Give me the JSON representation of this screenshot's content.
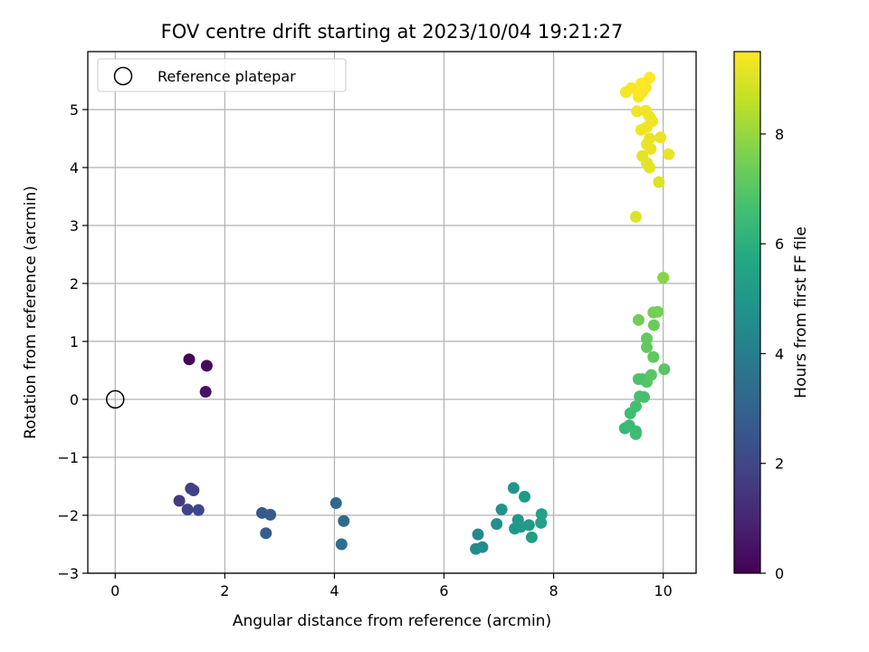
{
  "chart_data": {
    "type": "scatter",
    "title": "FOV centre drift starting at 2023/10/04 19:21:27",
    "xlabel": "Angular distance from reference (arcmin)",
    "ylabel": "Rotation from reference (arcmin)",
    "xlim": [
      -0.5,
      10.6
    ],
    "ylim": [
      -3,
      6
    ],
    "x_ticks": [
      0,
      2,
      4,
      6,
      8,
      10
    ],
    "y_ticks": [
      -3,
      -2,
      -1,
      0,
      1,
      2,
      3,
      4,
      5
    ],
    "x_tick_labels": [
      "0",
      "2",
      "4",
      "6",
      "8",
      "10"
    ],
    "y_tick_labels": [
      "−3",
      "−2",
      "−1",
      "0",
      "1",
      "2",
      "3",
      "4",
      "5"
    ],
    "grid": true,
    "legend": {
      "position": "top-left",
      "label": "Reference platepar"
    },
    "reference_point": {
      "x": 0,
      "y": 0
    },
    "colorbar": {
      "label": "Hours from first FF file",
      "colormap": "viridis",
      "range": [
        0,
        9.5
      ],
      "ticks": [
        0,
        2,
        4,
        6,
        8
      ],
      "tick_labels": [
        "0",
        "2",
        "4",
        "6",
        "8"
      ]
    },
    "points": [
      {
        "x": 1.35,
        "y": 0.69,
        "c": 0.1
      },
      {
        "x": 1.67,
        "y": 0.58,
        "c": 0.3
      },
      {
        "x": 1.65,
        "y": 0.13,
        "c": 0.5
      },
      {
        "x": 1.17,
        "y": -1.75,
        "c": 1.6
      },
      {
        "x": 1.38,
        "y": -1.54,
        "c": 1.7
      },
      {
        "x": 1.43,
        "y": -1.57,
        "c": 1.8
      },
      {
        "x": 1.32,
        "y": -1.9,
        "c": 1.9
      },
      {
        "x": 1.52,
        "y": -1.91,
        "c": 2.0
      },
      {
        "x": 2.68,
        "y": -1.96,
        "c": 2.6
      },
      {
        "x": 2.83,
        "y": -1.99,
        "c": 2.7
      },
      {
        "x": 2.75,
        "y": -2.31,
        "c": 2.8
      },
      {
        "x": 4.03,
        "y": -1.79,
        "c": 3.2
      },
      {
        "x": 4.17,
        "y": -2.1,
        "c": 3.3
      },
      {
        "x": 4.13,
        "y": -2.5,
        "c": 3.4
      },
      {
        "x": 6.62,
        "y": -2.33,
        "c": 4.4
      },
      {
        "x": 6.58,
        "y": -2.58,
        "c": 4.5
      },
      {
        "x": 6.7,
        "y": -2.55,
        "c": 4.6
      },
      {
        "x": 6.96,
        "y": -2.15,
        "c": 4.7
      },
      {
        "x": 7.05,
        "y": -1.9,
        "c": 4.8
      },
      {
        "x": 7.27,
        "y": -1.53,
        "c": 4.9
      },
      {
        "x": 7.29,
        "y": -2.23,
        "c": 5.0
      },
      {
        "x": 7.35,
        "y": -2.08,
        "c": 5.0
      },
      {
        "x": 7.4,
        "y": -2.2,
        "c": 5.1
      },
      {
        "x": 7.47,
        "y": -1.68,
        "c": 5.1
      },
      {
        "x": 7.55,
        "y": -2.17,
        "c": 5.2
      },
      {
        "x": 7.6,
        "y": -2.38,
        "c": 5.3
      },
      {
        "x": 7.77,
        "y": -2.13,
        "c": 5.4
      },
      {
        "x": 7.78,
        "y": -1.98,
        "c": 5.4
      },
      {
        "x": 9.3,
        "y": -0.5,
        "c": 6.3
      },
      {
        "x": 9.38,
        "y": -0.45,
        "c": 6.4
      },
      {
        "x": 9.5,
        "y": -0.55,
        "c": 6.4
      },
      {
        "x": 9.5,
        "y": -0.6,
        "c": 6.5
      },
      {
        "x": 9.4,
        "y": -0.24,
        "c": 6.5
      },
      {
        "x": 9.5,
        "y": -0.12,
        "c": 6.6
      },
      {
        "x": 9.57,
        "y": 0.05,
        "c": 6.7
      },
      {
        "x": 9.65,
        "y": 0.04,
        "c": 6.7
      },
      {
        "x": 9.55,
        "y": 0.35,
        "c": 6.8
      },
      {
        "x": 9.62,
        "y": 0.35,
        "c": 6.8
      },
      {
        "x": 9.7,
        "y": 0.3,
        "c": 6.9
      },
      {
        "x": 9.78,
        "y": 0.42,
        "c": 7.0
      },
      {
        "x": 10.02,
        "y": 0.52,
        "c": 7.0
      },
      {
        "x": 9.82,
        "y": 0.73,
        "c": 7.1
      },
      {
        "x": 9.7,
        "y": 0.9,
        "c": 7.2
      },
      {
        "x": 9.7,
        "y": 1.05,
        "c": 7.2
      },
      {
        "x": 9.83,
        "y": 1.28,
        "c": 7.3
      },
      {
        "x": 9.55,
        "y": 1.37,
        "c": 7.4
      },
      {
        "x": 9.82,
        "y": 1.5,
        "c": 7.5
      },
      {
        "x": 9.9,
        "y": 1.51,
        "c": 7.5
      },
      {
        "x": 10.0,
        "y": 2.1,
        "c": 7.8
      },
      {
        "x": 9.5,
        "y": 3.15,
        "c": 9.0
      },
      {
        "x": 9.92,
        "y": 3.75,
        "c": 9.0
      },
      {
        "x": 9.75,
        "y": 4.0,
        "c": 9.1
      },
      {
        "x": 9.7,
        "y": 4.08,
        "c": 9.1
      },
      {
        "x": 9.62,
        "y": 4.2,
        "c": 9.1
      },
      {
        "x": 9.77,
        "y": 4.32,
        "c": 9.2
      },
      {
        "x": 9.7,
        "y": 4.4,
        "c": 9.2
      },
      {
        "x": 9.75,
        "y": 4.5,
        "c": 9.2
      },
      {
        "x": 9.95,
        "y": 4.52,
        "c": 9.2
      },
      {
        "x": 10.1,
        "y": 4.23,
        "c": 9.2
      },
      {
        "x": 9.6,
        "y": 4.65,
        "c": 9.3
      },
      {
        "x": 9.7,
        "y": 4.7,
        "c": 9.3
      },
      {
        "x": 9.8,
        "y": 4.8,
        "c": 9.3
      },
      {
        "x": 9.75,
        "y": 4.88,
        "c": 9.3
      },
      {
        "x": 9.68,
        "y": 4.98,
        "c": 9.3
      },
      {
        "x": 9.52,
        "y": 4.97,
        "c": 9.3
      },
      {
        "x": 9.55,
        "y": 5.22,
        "c": 9.4
      },
      {
        "x": 9.62,
        "y": 5.3,
        "c": 9.4
      },
      {
        "x": 9.32,
        "y": 5.3,
        "c": 9.4
      },
      {
        "x": 9.42,
        "y": 5.37,
        "c": 9.4
      },
      {
        "x": 9.52,
        "y": 5.35,
        "c": 9.4
      },
      {
        "x": 9.68,
        "y": 5.38,
        "c": 9.4
      },
      {
        "x": 9.6,
        "y": 5.45,
        "c": 9.5
      },
      {
        "x": 9.75,
        "y": 5.55,
        "c": 9.5
      }
    ]
  }
}
